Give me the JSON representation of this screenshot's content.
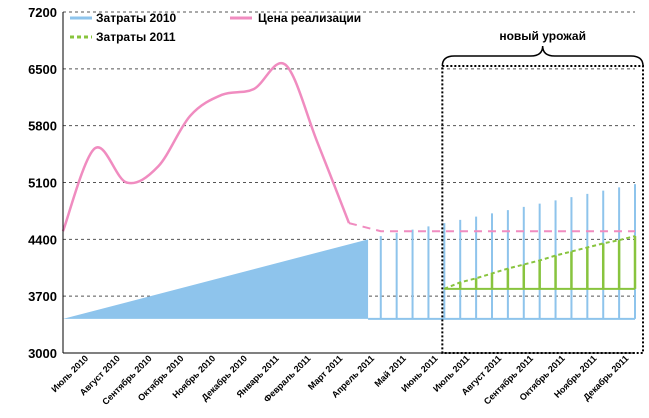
{
  "chart_data": {
    "type": "line",
    "title": "",
    "xlabel": "",
    "ylabel": "",
    "ylim": [
      3000,
      7200
    ],
    "yticks": [
      3000,
      3700,
      4400,
      5100,
      5800,
      6500,
      7200
    ],
    "grid": "horizontal dashed",
    "legend_placement": "top-left",
    "categories": [
      "Июль 2010",
      "Август 2010",
      "Сентябрь 2010",
      "Октябрь 2010",
      "Ноябрь 2010",
      "Декабрь 2010",
      "Январь 2011",
      "Февраль 2011",
      "Март 2011",
      "Апрель 2011",
      "Май 2011",
      "Июнь 2011",
      "Июль 2011",
      "Август 2011",
      "Сентябрь 2011",
      "Октябрь 2011",
      "Ноябрь 2011",
      "Декабрь 2011"
    ],
    "series": [
      {
        "name": "Затраты 2010",
        "style": "filled area then vertical bars",
        "color": "#8ec4ec",
        "base": 3420,
        "x": [
          0,
          9.6,
          10,
          10.5,
          11,
          11.5,
          12,
          12.5,
          13,
          13.5,
          14,
          14.5,
          15,
          15.5,
          16,
          16.5,
          17,
          17.5,
          18
        ],
        "values": [
          3420,
          4400,
          4440,
          4480,
          4520,
          4560,
          4600,
          4640,
          4680,
          4720,
          4760,
          4800,
          4840,
          4880,
          4920,
          4960,
          5000,
          5040,
          5080
        ]
      },
      {
        "name": "Цена реализации",
        "color": "#f08cc0",
        "x": [
          0,
          1,
          2,
          3,
          4,
          5,
          6,
          7,
          8,
          9,
          10,
          11,
          12,
          13,
          14,
          15,
          16,
          17,
          18
        ],
        "values": [
          4500,
          5520,
          5100,
          5300,
          5920,
          6180,
          6250,
          6550,
          5600,
          4600,
          4500,
          4500,
          4500,
          4500,
          4500,
          4500,
          4500,
          4500,
          4500
        ]
      },
      {
        "name": "Затраты 2011",
        "style": "dashed line with vertical bars",
        "color": "#88c43e",
        "base": 3790,
        "x": [
          12,
          12.5,
          13,
          13.5,
          14,
          14.5,
          15,
          15.5,
          16,
          16.5,
          17,
          17.5,
          18
        ],
        "values": [
          3790,
          3870,
          3920,
          3980,
          4040,
          4090,
          4140,
          4200,
          4250,
          4300,
          4350,
          4390,
          4440
        ]
      }
    ],
    "annotations": [
      {
        "text": "новый урожай",
        "start_category": "Июль 2011",
        "end_category": "Декабрь 2011"
      }
    ]
  }
}
